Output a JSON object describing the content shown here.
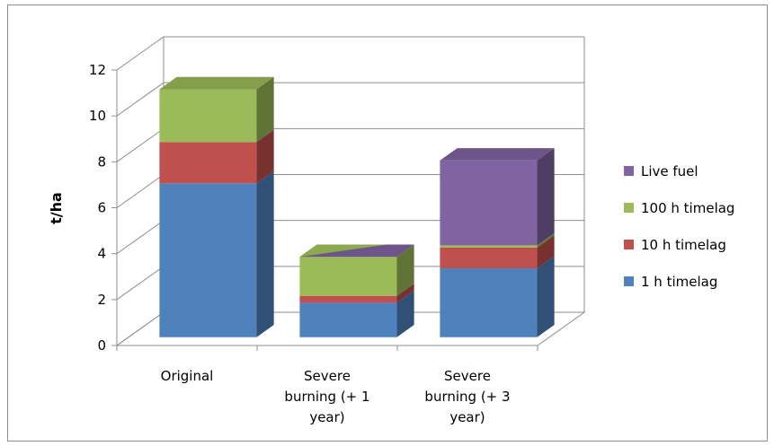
{
  "chart_data": {
    "type": "bar",
    "stacked": true,
    "three_d": true,
    "categories": [
      [
        "Original"
      ],
      [
        "Severe",
        "burning (+ 1",
        "year)"
      ],
      [
        "Severe",
        "burning (+ 3",
        "year)"
      ]
    ],
    "series": [
      {
        "name": "1 h timelag",
        "color": "#4f81bd",
        "values": [
          6.7,
          1.5,
          3.0
        ]
      },
      {
        "name": "10 h timelag",
        "color": "#c0504d",
        "values": [
          1.8,
          0.3,
          0.9
        ]
      },
      {
        "name": "100 h timelag",
        "color": "#9bbb59",
        "values": [
          2.3,
          1.7,
          0.1
        ]
      },
      {
        "name": "Live fuel",
        "color": "#8064a2",
        "values": [
          0.0,
          0.0,
          3.7
        ]
      }
    ],
    "ylabel": "t/ha",
    "ylim": [
      0,
      12
    ],
    "yticks": [
      "0",
      "2",
      "4",
      "6",
      "8",
      "10",
      "12"
    ],
    "legend_position": "right",
    "grid": true
  }
}
